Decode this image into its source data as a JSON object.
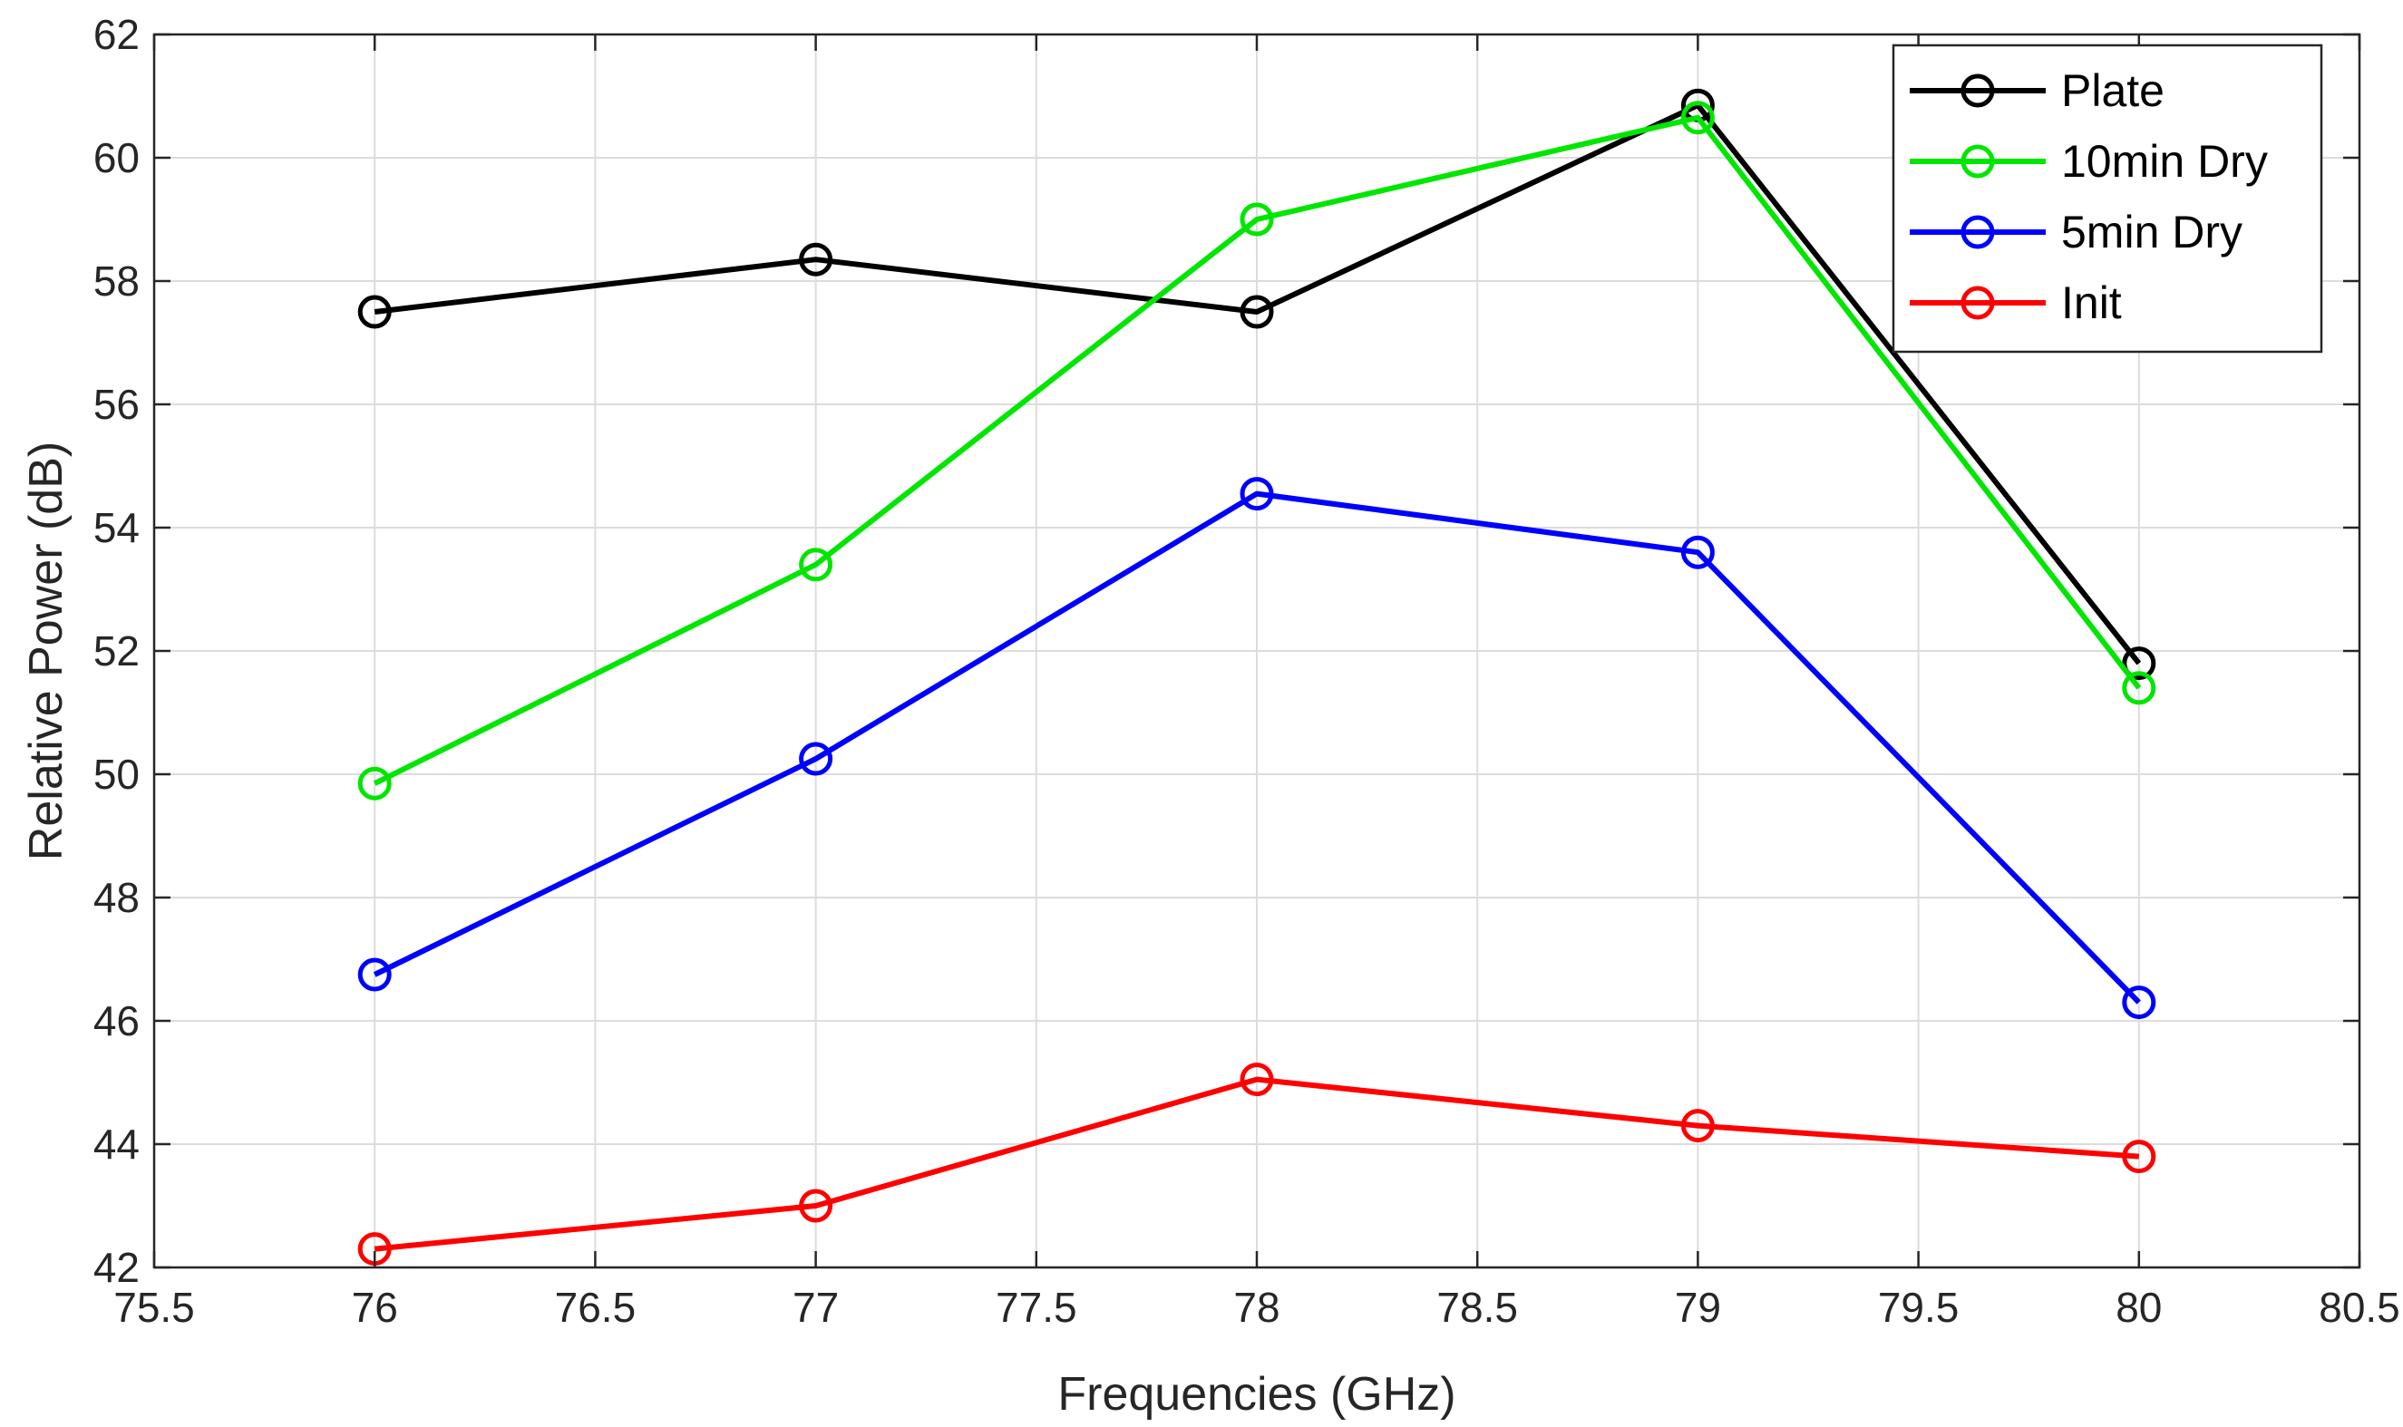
{
  "chart_data": {
    "type": "line",
    "title": "",
    "xlabel": "Frequencies (GHz)",
    "ylabel": "Relative Power (dB)",
    "xlim": [
      75.5,
      80.5
    ],
    "ylim": [
      42,
      62
    ],
    "xticks": [
      75.5,
      76,
      76.5,
      77,
      77.5,
      78,
      78.5,
      79,
      79.5,
      80,
      80.5
    ],
    "xtick_labels": [
      "75.5",
      "76",
      "76.5",
      "77",
      "77.5",
      "78",
      "78.5",
      "79",
      "79.5",
      "80",
      "80.5"
    ],
    "yticks": [
      42,
      44,
      46,
      48,
      50,
      52,
      54,
      56,
      58,
      60,
      62
    ],
    "ytick_labels": [
      "42",
      "44",
      "46",
      "48",
      "50",
      "52",
      "54",
      "56",
      "58",
      "60",
      "62"
    ],
    "grid": true,
    "legend_position": "top-right",
    "marker": "circle",
    "x": [
      76,
      77,
      78,
      79,
      80
    ],
    "series": [
      {
        "name": "Plate",
        "color": "#000000",
        "values": [
          57.5,
          58.35,
          57.5,
          60.85,
          51.8
        ]
      },
      {
        "name": "10min Dry",
        "color": "#00e600",
        "values": [
          49.85,
          53.4,
          59.0,
          60.65,
          51.4
        ]
      },
      {
        "name": "5min Dry",
        "color": "#0000ff",
        "values": [
          46.75,
          50.25,
          54.55,
          53.6,
          46.3
        ]
      },
      {
        "name": "Init",
        "color": "#ff0000",
        "values": [
          42.3,
          43.0,
          45.05,
          44.3,
          43.8
        ]
      }
    ]
  }
}
